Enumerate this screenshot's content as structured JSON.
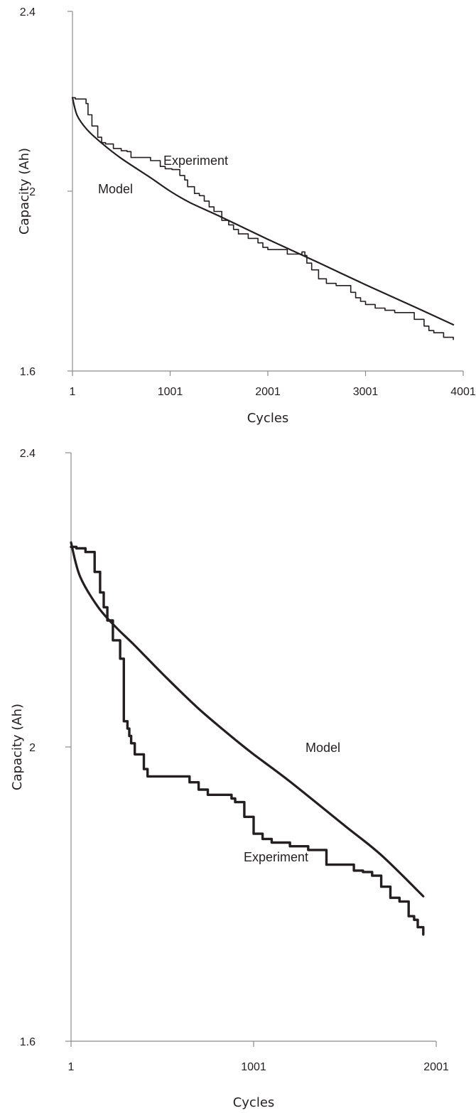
{
  "chart_data": [
    {
      "type": "line",
      "xlabel": "Cycles",
      "ylabel": "Capacity (Ah)",
      "xlim": [
        1,
        4001
      ],
      "ylim": [
        1.6,
        2.4
      ],
      "xticks": [
        "1",
        "1001",
        "2001",
        "3001",
        "4001"
      ],
      "yticks": [
        "1.6",
        "2",
        "2.4"
      ],
      "annotations": [
        "Experiment",
        "Model"
      ],
      "series": [
        {
          "name": "Model",
          "x": [
            1,
            50,
            150,
            300,
            500,
            800,
            1001,
            1200,
            1500,
            2001,
            2500,
            3001,
            3500,
            3900
          ],
          "y": [
            2.208,
            2.168,
            2.137,
            2.107,
            2.073,
            2.03,
            2.0,
            1.975,
            1.945,
            1.893,
            1.843,
            1.792,
            1.743,
            1.703
          ],
          "style": "smooth",
          "stroke_width": 2.2
        },
        {
          "name": "Experiment",
          "x": [
            1,
            30,
            140,
            160,
            200,
            260,
            300,
            340,
            420,
            500,
            560,
            600,
            700,
            800,
            900,
            950,
            1020,
            1100,
            1150,
            1180,
            1250,
            1300,
            1350,
            1400,
            1450,
            1530,
            1600,
            1650,
            1700,
            1800,
            1900,
            1950,
            2001,
            2100,
            2200,
            2300,
            2350,
            2380,
            2400,
            2450,
            2520,
            2600,
            2700,
            2800,
            2850,
            2900,
            2950,
            3001,
            3100,
            3200,
            3300,
            3400,
            3450,
            3500,
            3600,
            3650,
            3700,
            3800,
            3900
          ],
          "y": [
            2.208,
            2.205,
            2.195,
            2.17,
            2.145,
            2.12,
            2.108,
            2.105,
            2.095,
            2.09,
            2.088,
            2.075,
            2.075,
            2.068,
            2.055,
            2.05,
            2.048,
            2.035,
            2.025,
            2.01,
            1.995,
            1.99,
            1.978,
            1.965,
            1.955,
            1.935,
            1.925,
            1.915,
            1.905,
            1.895,
            1.885,
            1.875,
            1.87,
            1.87,
            1.86,
            1.86,
            1.865,
            1.857,
            1.84,
            1.825,
            1.805,
            1.795,
            1.79,
            1.79,
            1.775,
            1.763,
            1.755,
            1.748,
            1.74,
            1.735,
            1.73,
            1.73,
            1.73,
            1.715,
            1.7,
            1.69,
            1.685,
            1.675,
            1.67
          ],
          "style": "step",
          "stroke_width": 1.6
        }
      ]
    },
    {
      "type": "line",
      "xlabel": "Cycles",
      "ylabel": "Capacity (Ah)",
      "xlim": [
        1,
        2001
      ],
      "ylim": [
        1.6,
        2.4
      ],
      "xticks": [
        "1",
        "1001",
        "2001"
      ],
      "yticks": [
        "1.6",
        "2",
        "2.4"
      ],
      "annotations": [
        "Model",
        "Experiment"
      ],
      "series": [
        {
          "name": "Model",
          "x": [
            1,
            50,
            150,
            250,
            350,
            500,
            700,
            900,
            1001,
            1200,
            1500,
            1700,
            1930
          ],
          "y": [
            2.278,
            2.232,
            2.19,
            2.162,
            2.138,
            2.1,
            2.052,
            2.01,
            1.99,
            1.953,
            1.893,
            1.853,
            1.797
          ],
          "style": "smooth",
          "stroke_width": 3.2
        },
        {
          "name": "Experiment",
          "x": [
            1,
            30,
            80,
            130,
            160,
            180,
            200,
            230,
            270,
            290,
            310,
            320,
            330,
            350,
            400,
            420,
            450,
            500,
            600,
            650,
            700,
            750,
            800,
            850,
            880,
            900,
            950,
            1001,
            1050,
            1100,
            1200,
            1250,
            1300,
            1400,
            1450,
            1500,
            1550,
            1600,
            1650,
            1700,
            1750,
            1800,
            1850,
            1880,
            1900,
            1930
          ],
          "y": [
            2.272,
            2.27,
            2.265,
            2.238,
            2.21,
            2.19,
            2.172,
            2.145,
            2.12,
            2.035,
            2.025,
            2.015,
            2.005,
            1.99,
            1.97,
            1.96,
            1.96,
            1.96,
            1.96,
            1.952,
            1.942,
            1.935,
            1.935,
            1.935,
            1.93,
            1.925,
            1.905,
            1.882,
            1.875,
            1.87,
            1.865,
            1.865,
            1.86,
            1.84,
            1.84,
            1.84,
            1.832,
            1.83,
            1.825,
            1.81,
            1.795,
            1.79,
            1.77,
            1.765,
            1.755,
            1.745
          ],
          "style": "step",
          "stroke_width": 3.4
        }
      ]
    }
  ]
}
